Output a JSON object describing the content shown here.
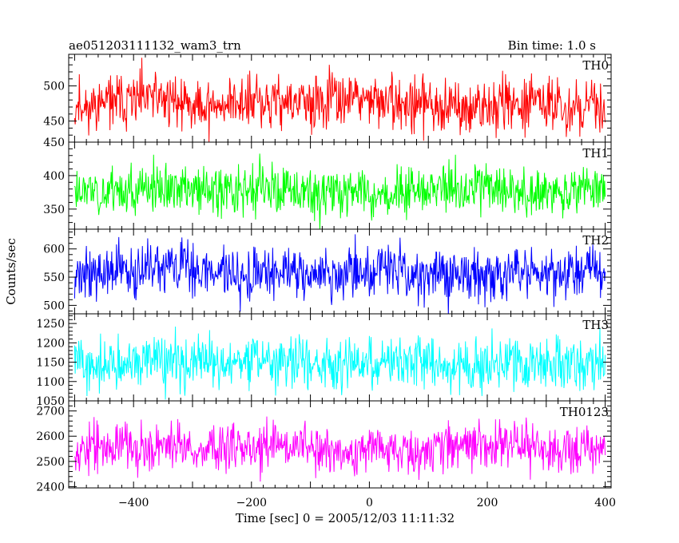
{
  "chart_data": {
    "type": "line",
    "title": "ae051203111132_wam3_trn",
    "subtitle": "Bin time: 1.0 s",
    "xlabel": "Time [sec] 0 = 2005/12/03 11:11:32",
    "ylabel": "Counts/sec",
    "xlim": [
      -510,
      410
    ],
    "x_range": [
      -500,
      400
    ],
    "x_ticks": [
      -400,
      -200,
      0,
      200,
      400
    ],
    "x_tick_labels": [
      "−400",
      "−200",
      "0",
      "200",
      "400"
    ],
    "grid": false,
    "panels": [
      {
        "name": "TH0",
        "color": "#ff0000",
        "ylim": [
          420,
          545
        ],
        "y_ticks": [
          450,
          500
        ],
        "y_tick_labels": [
          "450",
          "500"
        ],
        "mean": 474,
        "noise_sd": 19,
        "seed": 11
      },
      {
        "name": "TH1",
        "color": "#00ff00",
        "ylim": [
          320,
          450
        ],
        "y_ticks": [
          350,
          400,
          450
        ],
        "y_tick_labels": [
          "350",
          "400",
          "450"
        ],
        "mean": 380,
        "noise_sd": 18,
        "seed": 23
      },
      {
        "name": "TH2",
        "color": "#0000ff",
        "ylim": [
          485,
          635
        ],
        "y_ticks": [
          500,
          550,
          600
        ],
        "y_tick_labels": [
          "500",
          "550",
          "600"
        ],
        "mean": 558,
        "noise_sd": 23,
        "seed": 37
      },
      {
        "name": "TH3",
        "color": "#00ffff",
        "ylim": [
          1050,
          1275
        ],
        "y_ticks": [
          1050,
          1100,
          1150,
          1200,
          1250
        ],
        "y_tick_labels": [
          "1050",
          "1100",
          "1150",
          "1200",
          "1250"
        ],
        "mean": 1150,
        "noise_sd": 33,
        "seed": 41
      },
      {
        "name": "TH0123",
        "color": "#ff00ff",
        "ylim": [
          2395,
          2740
        ],
        "y_ticks": [
          2400,
          2500,
          2600,
          2700
        ],
        "y_tick_labels": [
          "2400",
          "2500",
          "2600",
          "2700"
        ],
        "mean": 2560,
        "noise_sd": 48,
        "seed": 53
      }
    ]
  }
}
